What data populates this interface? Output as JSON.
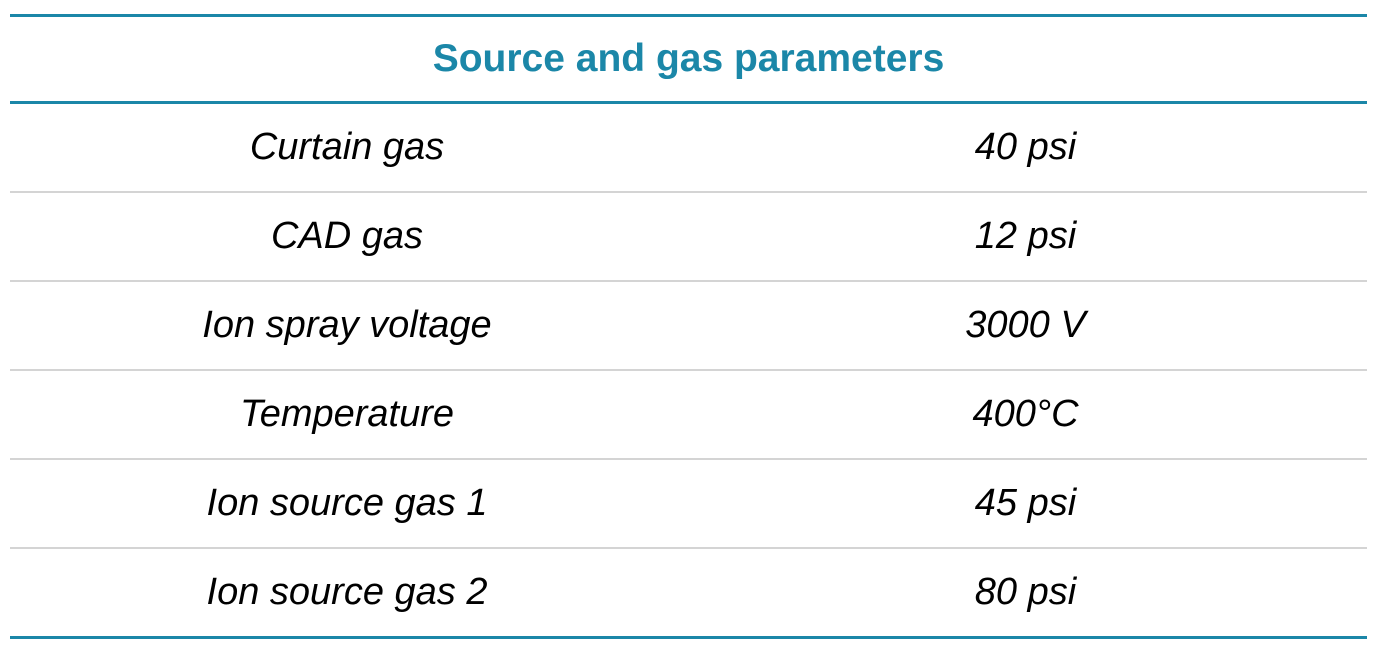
{
  "table": {
    "title": "Source and gas parameters",
    "rows": [
      [
        "Curtain gas",
        "40 psi"
      ],
      [
        "CAD gas",
        "12 psi"
      ],
      [
        "Ion spray voltage",
        "3000 V"
      ],
      [
        "Temperature",
        "400°C"
      ],
      [
        "Ion source gas 1",
        "45 psi"
      ],
      [
        "Ion source gas 2",
        "80 psi"
      ]
    ]
  }
}
